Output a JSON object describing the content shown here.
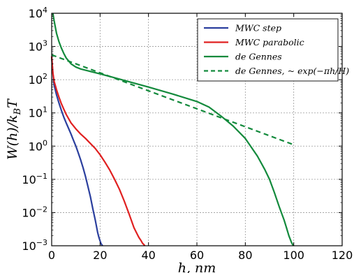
{
  "chart_data": {
    "type": "line",
    "title": "",
    "xlabel": "h, nm",
    "ylabel": "W(h)/k_BT",
    "xlim": [
      0,
      120
    ],
    "ylim": [
      0.001,
      10000
    ],
    "yscale": "log",
    "grid": true,
    "legend_placement": "top-right",
    "x_ticks": [
      0,
      20,
      40,
      60,
      80,
      100,
      120
    ],
    "x_tick_labels": [
      "0",
      "20",
      "40",
      "60",
      "80",
      "100",
      "120"
    ],
    "y_ticks": [
      0.001,
      0.01,
      0.1,
      1,
      10,
      100,
      1000,
      10000
    ],
    "y_tick_labels": [
      {
        "base": "10",
        "exp": "−3"
      },
      {
        "base": "10",
        "exp": "−2"
      },
      {
        "base": "10",
        "exp": "−1"
      },
      {
        "base": "10",
        "exp": "0"
      },
      {
        "base": "10",
        "exp": "1"
      },
      {
        "base": "10",
        "exp": "2"
      },
      {
        "base": "10",
        "exp": "3"
      },
      {
        "base": "10",
        "exp": "4"
      }
    ],
    "series": [
      {
        "name": "MWC step",
        "color": "#2b3f9e",
        "style": "solid",
        "x": [
          0,
          0.5,
          1,
          2,
          3,
          4,
          5,
          6,
          7,
          8,
          9,
          10,
          11,
          12,
          13,
          14,
          15,
          16,
          17,
          18,
          19,
          19.5,
          20,
          20.3,
          20.6,
          20.8,
          21
        ],
        "y": [
          500,
          160,
          70,
          35,
          20,
          12,
          7.5,
          5,
          3.4,
          2.3,
          1.5,
          1.0,
          0.62,
          0.38,
          0.22,
          0.12,
          0.06,
          0.03,
          0.013,
          0.006,
          0.0025,
          0.0018,
          0.0014,
          0.0012,
          0.0011,
          0.00105,
          0.001
        ]
      },
      {
        "name": "MWC parabolic",
        "color": "#e02020",
        "style": "solid",
        "x": [
          0,
          0.5,
          1,
          2,
          3,
          4,
          5,
          6,
          8,
          10,
          12,
          14,
          16,
          18,
          20,
          22,
          24,
          26,
          28,
          30,
          32,
          34,
          35,
          36,
          37,
          37.5,
          38,
          38.5
        ],
        "y": [
          500,
          160,
          90,
          50,
          30,
          19,
          13,
          9,
          5,
          3.3,
          2.3,
          1.7,
          1.2,
          0.85,
          0.55,
          0.33,
          0.19,
          0.1,
          0.05,
          0.022,
          0.009,
          0.0035,
          0.0025,
          0.0018,
          0.0014,
          0.0012,
          0.0011,
          0.001
        ]
      },
      {
        "name": "de Gennes",
        "color": "#138a3c",
        "style": "solid",
        "x": [
          0.5,
          1,
          2,
          3,
          4,
          5,
          6,
          8,
          10,
          12,
          15,
          20,
          25,
          30,
          40,
          50,
          60,
          65,
          70,
          75,
          80,
          85,
          88,
          90,
          92,
          94,
          96,
          97,
          98,
          99,
          99.5,
          100
        ],
        "y": [
          10000,
          6000,
          2500,
          1400,
          900,
          620,
          450,
          300,
          240,
          210,
          185,
          150,
          120,
          95,
          60,
          37,
          22,
          15,
          8,
          4,
          1.7,
          0.5,
          0.2,
          0.1,
          0.04,
          0.015,
          0.006,
          0.0035,
          0.002,
          0.0013,
          0.0011,
          0.001
        ]
      },
      {
        "name": "de Gennes, ~ exp(−πh/H)",
        "color": "#138a3c",
        "style": "dashed",
        "x": [
          0,
          100
        ],
        "y": [
          560,
          1.1
        ]
      }
    ]
  },
  "legend": {
    "entries": [
      {
        "name": "MWC step",
        "color": "#2b3f9e",
        "style": "solid"
      },
      {
        "name": "MWC parabolic",
        "color": "#e02020",
        "style": "solid"
      },
      {
        "name": "de Gennes",
        "color": "#138a3c",
        "style": "solid"
      },
      {
        "name": "de Gennes, ~ exp(−πh/H)",
        "color": "#138a3c",
        "style": "dashed"
      }
    ]
  },
  "colors": {
    "grid": "#9a9a9a",
    "axes": "#000000",
    "background": "#ffffff"
  }
}
